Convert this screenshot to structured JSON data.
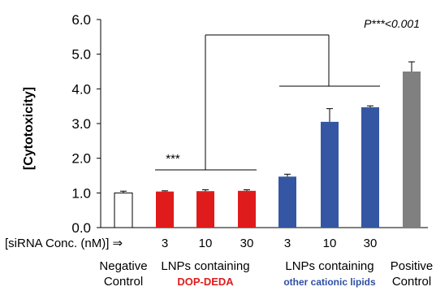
{
  "chart_data": {
    "type": "bar",
    "ylabel": "[Cytotoxicity]",
    "ylim": [
      0,
      6
    ],
    "yticks": [
      "0.0",
      "1.0",
      "2.0",
      "3.0",
      "4.0",
      "5.0",
      "6.0"
    ],
    "grid": false,
    "conc_label": "[siRNA Conc. (nM)] ⇒",
    "annotation": "P***<0.001",
    "significance_label": "***",
    "bars": [
      {
        "label": "",
        "value": 1.0,
        "error": 0.05,
        "color": "#ffffff",
        "group": "negative"
      },
      {
        "label": "3",
        "value": 1.04,
        "error": 0.02,
        "color": "#e01b1b",
        "group": "dopdeda"
      },
      {
        "label": "10",
        "value": 1.05,
        "error": 0.04,
        "color": "#e01b1b",
        "group": "dopdeda"
      },
      {
        "label": "30",
        "value": 1.06,
        "error": 0.03,
        "color": "#e01b1b",
        "group": "dopdeda"
      },
      {
        "label": "3",
        "value": 1.47,
        "error": 0.07,
        "color": "#3557a3",
        "group": "other"
      },
      {
        "label": "10",
        "value": 3.05,
        "error": 0.38,
        "color": "#3557a3",
        "group": "other"
      },
      {
        "label": "30",
        "value": 3.47,
        "error": 0.04,
        "color": "#3557a3",
        "group": "other"
      },
      {
        "label": "",
        "value": 4.5,
        "error": 0.28,
        "color": "#808080",
        "group": "positive"
      }
    ],
    "groups": {
      "negative": {
        "line1": "Negative",
        "line2": "Control"
      },
      "dopdeda": {
        "line1": "LNPs containing",
        "line2": "DOP-DEDA",
        "line2_color": "#e01b1b"
      },
      "other": {
        "line1": "LNPs containing",
        "line2": "other cationic lipids",
        "line2_color": "#2e4fa3"
      },
      "positive": {
        "line1": "Positive",
        "line2": "Control"
      }
    }
  }
}
